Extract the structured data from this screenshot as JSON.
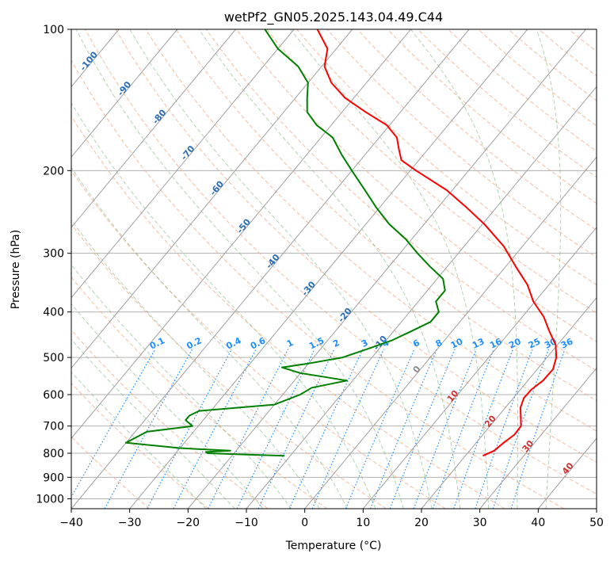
{
  "chart_data": {
    "type": "line",
    "chart_kind": "skew-t log-p",
    "title": "wetPf2_GN05.2025.143.04.49.C44",
    "xlabel": "Temperature (°C)",
    "ylabel": "Pressure (hPa)",
    "xlim": [
      -40,
      50
    ],
    "ylim": [
      1050,
      100
    ],
    "y_scale": "log",
    "grid": true,
    "x_ticks": [
      "−40",
      "−30",
      "−20",
      "−10",
      "0",
      "10",
      "20",
      "30",
      "40",
      "50"
    ],
    "y_ticks": [
      {
        "p": 100,
        "label": "100"
      },
      {
        "p": 200,
        "label": "200"
      },
      {
        "p": 300,
        "label": "300"
      },
      {
        "p": 400,
        "label": "400"
      },
      {
        "p": 500,
        "label": "500"
      },
      {
        "p": 600,
        "label": "600"
      },
      {
        "p": 700,
        "label": "700"
      },
      {
        "p": 800,
        "label": "800"
      },
      {
        "p": 900,
        "label": "900"
      },
      {
        "p": 1000,
        "label": "1000"
      }
    ],
    "isotherm_labels": [
      {
        "t": -100,
        "p": 118,
        "text": "-100",
        "color": "#2a6db5"
      },
      {
        "t": -90,
        "p": 135,
        "text": "-90",
        "color": "#2a6db5"
      },
      {
        "t": -80,
        "p": 155,
        "text": "-80",
        "color": "#2a6db5"
      },
      {
        "t": -70,
        "p": 185,
        "text": "-70",
        "color": "#2a6db5"
      },
      {
        "t": -60,
        "p": 220,
        "text": "-60",
        "color": "#2a6db5"
      },
      {
        "t": -50,
        "p": 265,
        "text": "-50",
        "color": "#2a6db5"
      },
      {
        "t": -40,
        "p": 315,
        "text": "-40",
        "color": "#2a6db5"
      },
      {
        "t": -30,
        "p": 360,
        "text": "-30",
        "color": "#2a6db5"
      },
      {
        "t": -20,
        "p": 410,
        "text": "-20",
        "color": "#2a6db5"
      },
      {
        "t": -10,
        "p": 470,
        "text": "-10",
        "color": "#2a6db5"
      },
      {
        "t": 0,
        "p": 535,
        "text": "0",
        "color": "#888888"
      },
      {
        "t": 10,
        "p": 610,
        "text": "10",
        "color": "#cc3333"
      },
      {
        "t": 20,
        "p": 690,
        "text": "20",
        "color": "#cc3333"
      },
      {
        "t": 30,
        "p": 780,
        "text": "30",
        "color": "#cc3333"
      },
      {
        "t": 40,
        "p": 870,
        "text": "40",
        "color": "#cc3333"
      }
    ],
    "mixing_ratio_labels": [
      "0.1",
      "0.2",
      "0.4",
      "0.6",
      "1",
      "1.5",
      "2",
      "3",
      "4",
      "6",
      "8",
      "10",
      "13",
      "16",
      "20",
      "25",
      "30",
      "36"
    ],
    "mixing_ratio_values": [
      0.1,
      0.2,
      0.4,
      0.6,
      1,
      1.5,
      2,
      3,
      4,
      6,
      8,
      10,
      13,
      16,
      20,
      25,
      30,
      36
    ],
    "series": [
      {
        "color": "#ff0000",
        "kind": "temperature",
        "points": [
          [
            810,
            23
          ],
          [
            790,
            24.2
          ],
          [
            760,
            24.7
          ],
          [
            730,
            25.4
          ],
          [
            700,
            25.3
          ],
          [
            670,
            24
          ],
          [
            640,
            22.6
          ],
          [
            610,
            21.8
          ],
          [
            585,
            21.9
          ],
          [
            560,
            22.6
          ],
          [
            530,
            22.7
          ],
          [
            500,
            21.6
          ],
          [
            470,
            19.7
          ],
          [
            440,
            16.7
          ],
          [
            410,
            13.7
          ],
          [
            380,
            9.7
          ],
          [
            350,
            6.3
          ],
          [
            320,
            1.7
          ],
          [
            290,
            -3.2
          ],
          [
            260,
            -9.7
          ],
          [
            240,
            -15
          ],
          [
            220,
            -21
          ],
          [
            200,
            -29
          ],
          [
            190,
            -33
          ],
          [
            180,
            -35
          ],
          [
            170,
            -37
          ],
          [
            160,
            -40.5
          ],
          [
            150,
            -46
          ],
          [
            140,
            -51.5
          ],
          [
            130,
            -56
          ],
          [
            120,
            -59.5
          ],
          [
            110,
            -61.5
          ],
          [
            100,
            -66
          ]
        ]
      },
      {
        "color": "#008000",
        "kind": "dewpoint",
        "points": [
          [
            810,
            -11
          ],
          [
            805,
            -18
          ],
          [
            800,
            -24.5
          ],
          [
            795,
            -25
          ],
          [
            790,
            -21
          ],
          [
            780,
            -30
          ],
          [
            760,
            -40
          ],
          [
            720,
            -38
          ],
          [
            700,
            -31
          ],
          [
            680,
            -33
          ],
          [
            665,
            -33
          ],
          [
            650,
            -32
          ],
          [
            630,
            -20
          ],
          [
            600,
            -17
          ],
          [
            580,
            -16
          ],
          [
            560,
            -11
          ],
          [
            540,
            -20
          ],
          [
            525,
            -24
          ],
          [
            515,
            -20
          ],
          [
            500,
            -15
          ],
          [
            480,
            -12
          ],
          [
            460,
            -9
          ],
          [
            440,
            -7
          ],
          [
            420,
            -5
          ],
          [
            400,
            -5
          ],
          [
            380,
            -7
          ],
          [
            360,
            -7
          ],
          [
            340,
            -9
          ],
          [
            320,
            -13
          ],
          [
            300,
            -17
          ],
          [
            280,
            -21
          ],
          [
            260,
            -26
          ],
          [
            240,
            -30.5
          ],
          [
            220,
            -35
          ],
          [
            200,
            -40
          ],
          [
            185,
            -44
          ],
          [
            170,
            -48
          ],
          [
            160,
            -52.5
          ],
          [
            150,
            -56
          ],
          [
            140,
            -58
          ],
          [
            130,
            -60
          ],
          [
            120,
            -64
          ],
          [
            110,
            -70
          ],
          [
            100,
            -75
          ]
        ]
      }
    ]
  }
}
